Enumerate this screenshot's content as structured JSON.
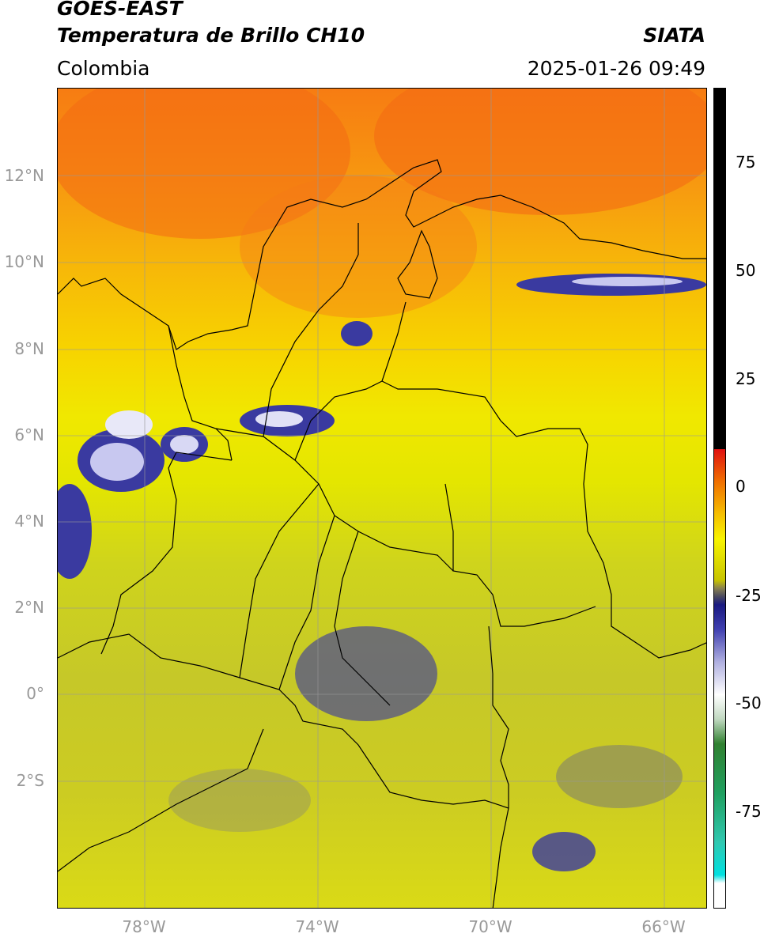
{
  "header": {
    "line1": "GOES-EAST",
    "line2": "Temperatura de Brillo CH10",
    "brand": "SIATA",
    "region": "Colombia",
    "datetime": "2025-01-26 09:49"
  },
  "map": {
    "lat_labels": [
      "12°N",
      "10°N",
      "8°N",
      "6°N",
      "4°N",
      "2°N",
      "0°",
      "2°S"
    ],
    "lon_labels": [
      "78°W",
      "74°W",
      "70°W",
      "66°W"
    ],
    "colors": {
      "warm_top": "#f77c12",
      "mid": "#f0e800",
      "cold_cloud": "#1a1a80",
      "cloud_white": "#ffffff",
      "border": "#000000",
      "grid": "#999999"
    }
  },
  "colorbar": {
    "ticks": [
      "75",
      "50",
      "25",
      "0",
      "-25",
      "-50",
      "-75"
    ]
  }
}
